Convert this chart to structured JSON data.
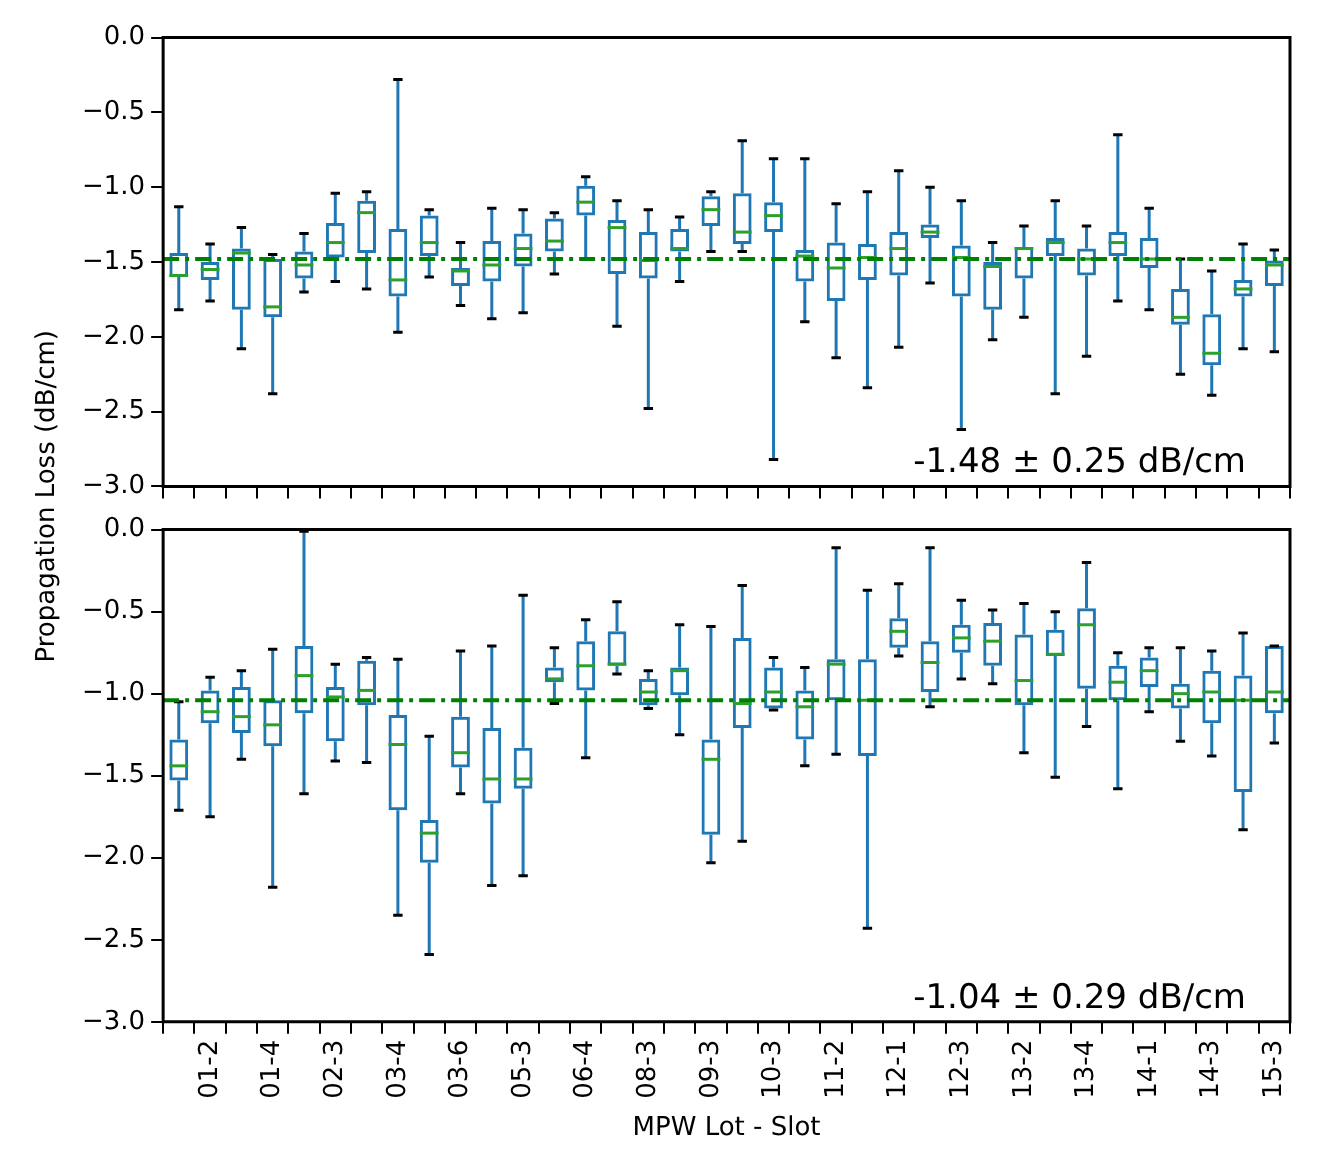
{
  "chart_data": [
    {
      "type": "box",
      "ylabel": "Propagation Loss (dB/cm)",
      "tick_labels": "y",
      "color": "#1f77b4",
      "grid": false,
      "legend": false,
      "categories": [
        null,
        null,
        null,
        null,
        null,
        null,
        null,
        null,
        null,
        null,
        null,
        null,
        null,
        null,
        null,
        null,
        null,
        null,
        null,
        null,
        null,
        null,
        null,
        null,
        null,
        null,
        null,
        null,
        null,
        null,
        null,
        null,
        null,
        null,
        null,
        null
      ],
      "boxes": [
        {
          "low": -1.82,
          "q1": -1.6,
          "median": -1.59,
          "q3": -1.44,
          "high": -1.13
        },
        {
          "low": -1.76,
          "q1": -1.62,
          "median": -1.55,
          "q3": -1.5,
          "high": -1.38
        },
        {
          "low": -2.08,
          "q1": -1.82,
          "median": -1.44,
          "q3": -1.41,
          "high": -1.27
        },
        {
          "low": -2.38,
          "q1": -1.87,
          "median": -1.8,
          "q3": -1.48,
          "high": -1.45
        },
        {
          "low": -1.7,
          "q1": -1.61,
          "median": -1.52,
          "q3": -1.43,
          "high": -1.31
        },
        {
          "low": -1.63,
          "q1": -1.47,
          "median": -1.37,
          "q3": -1.24,
          "high": -1.04
        },
        {
          "low": -1.68,
          "q1": -1.44,
          "median": -1.17,
          "q3": -1.09,
          "high": -1.03
        },
        {
          "low": -1.97,
          "q1": -1.73,
          "median": -1.62,
          "q3": -1.28,
          "high": -0.28
        },
        {
          "low": -1.6,
          "q1": -1.46,
          "median": -1.37,
          "q3": -1.19,
          "high": -1.15
        },
        {
          "low": -1.79,
          "q1": -1.66,
          "median": -1.56,
          "q3": -1.54,
          "high": -1.37
        },
        {
          "low": -1.88,
          "q1": -1.63,
          "median": -1.52,
          "q3": -1.36,
          "high": -1.14
        },
        {
          "low": -1.84,
          "q1": -1.53,
          "median": -1.41,
          "q3": -1.31,
          "high": -1.15
        },
        {
          "low": -1.58,
          "q1": -1.43,
          "median": -1.36,
          "q3": -1.21,
          "high": -1.17
        },
        {
          "low": -1.48,
          "q1": -1.19,
          "median": -1.1,
          "q3": -0.99,
          "high": -0.93
        },
        {
          "low": -1.93,
          "q1": -1.58,
          "median": -1.27,
          "q3": -1.22,
          "high": -1.09
        },
        {
          "low": -2.48,
          "q1": -1.61,
          "median": -1.49,
          "q3": -1.3,
          "high": -1.15
        },
        {
          "low": -1.63,
          "q1": -1.43,
          "median": -1.41,
          "q3": -1.28,
          "high": -1.2
        },
        {
          "low": -1.43,
          "q1": -1.26,
          "median": -1.15,
          "q3": -1.06,
          "high": -1.03
        },
        {
          "low": -1.43,
          "q1": -1.38,
          "median": -1.3,
          "q3": -1.04,
          "high": -0.69
        },
        {
          "low": -2.82,
          "q1": -1.3,
          "median": -1.19,
          "q3": -1.1,
          "high": -0.81
        },
        {
          "low": -1.9,
          "q1": -1.63,
          "median": -1.46,
          "q3": -1.42,
          "high": -0.81
        },
        {
          "low": -2.14,
          "q1": -1.76,
          "median": -1.54,
          "q3": -1.37,
          "high": -1.11
        },
        {
          "low": -2.34,
          "q1": -1.62,
          "median": -1.47,
          "q3": -1.38,
          "high": -1.03
        },
        {
          "low": -2.07,
          "q1": -1.59,
          "median": -1.41,
          "q3": -1.3,
          "high": -0.89
        },
        {
          "low": -1.64,
          "q1": -1.34,
          "median": -1.3,
          "q3": -1.25,
          "high": -1.0
        },
        {
          "low": -2.62,
          "q1": -1.73,
          "median": -1.47,
          "q3": -1.39,
          "high": -1.09
        },
        {
          "low": -2.02,
          "q1": -1.82,
          "median": -1.53,
          "q3": -1.5,
          "high": -1.37
        },
        {
          "low": -1.87,
          "q1": -1.61,
          "median": -1.41,
          "q3": -1.4,
          "high": -1.26
        },
        {
          "low": -2.38,
          "q1": -1.46,
          "median": -1.37,
          "q3": -1.34,
          "high": -1.09
        },
        {
          "low": -2.13,
          "q1": -1.59,
          "median": -1.48,
          "q3": -1.41,
          "high": -1.26
        },
        {
          "low": -1.76,
          "q1": -1.46,
          "median": -1.37,
          "q3": -1.3,
          "high": -0.65
        },
        {
          "low": -1.82,
          "q1": -1.54,
          "median": -1.48,
          "q3": -1.34,
          "high": -1.14
        },
        {
          "low": -2.25,
          "q1": -1.92,
          "median": -1.87,
          "q3": -1.68,
          "high": -1.48
        },
        {
          "low": -2.39,
          "q1": -2.19,
          "median": -2.11,
          "q3": -1.85,
          "high": -1.56
        },
        {
          "low": -2.08,
          "q1": -1.73,
          "median": -1.68,
          "q3": -1.62,
          "high": -1.38
        },
        {
          "low": -2.1,
          "q1": -1.66,
          "median": -1.52,
          "q3": -1.49,
          "high": -1.42
        }
      ],
      "ylim": [
        -3,
        0
      ],
      "yticks": [
        {
          "value": -3,
          "label": "−3.0"
        },
        {
          "value": -2.5,
          "label": "−2.5"
        },
        {
          "value": -2,
          "label": "−2.0"
        },
        {
          "value": -1.5,
          "label": "−1.5"
        },
        {
          "value": -1,
          "label": "−1.0"
        },
        {
          "value": -0.5,
          "label": "−0.5"
        },
        {
          "value": 0,
          "label": "0.0"
        }
      ],
      "ref_lines": [
        {
          "axis": "y",
          "value": -1.48,
          "color": "#008000",
          "line_style": "dashed"
        }
      ],
      "annotations": [
        "-1.48 ± 0.25 dB/cm"
      ]
    },
    {
      "type": "box",
      "xlabel": "MPW Lot - Slot",
      "color": "#1f77b4",
      "grid": false,
      "legend": false,
      "categories": [
        null,
        "01-2",
        null,
        "01-4",
        null,
        "02-3",
        null,
        "03-4",
        null,
        "03-6",
        null,
        "05-3",
        null,
        "06-4",
        null,
        "08-3",
        null,
        "09-3",
        null,
        "10-3",
        null,
        "11-2",
        null,
        "12-1",
        null,
        "12-3",
        null,
        "13-2",
        null,
        "13-4",
        null,
        "14-1",
        null,
        "14-3",
        null,
        "15-3"
      ],
      "boxes": [
        {
          "low": -1.71,
          "q1": -1.53,
          "median": -1.44,
          "q3": -1.28,
          "high": -1.05
        },
        {
          "low": -1.75,
          "q1": -1.18,
          "median": -1.11,
          "q3": -0.98,
          "high": -0.9
        },
        {
          "low": -1.4,
          "q1": -1.24,
          "median": -1.14,
          "q3": -0.96,
          "high": -0.86
        },
        {
          "low": -2.18,
          "q1": -1.32,
          "median": -1.19,
          "q3": -1.04,
          "high": -0.73
        },
        {
          "low": -1.61,
          "q1": -1.12,
          "median": -0.89,
          "q3": -0.71,
          "high": -0.01
        },
        {
          "low": -1.41,
          "q1": -1.29,
          "median": -1.02,
          "q3": -0.96,
          "high": -0.82
        },
        {
          "low": -1.42,
          "q1": -1.07,
          "median": -0.98,
          "q3": -0.8,
          "high": -0.78
        },
        {
          "low": -2.35,
          "q1": -1.71,
          "median": -1.31,
          "q3": -1.13,
          "high": -0.79
        },
        {
          "low": -2.59,
          "q1": -2.03,
          "median": -1.85,
          "q3": -1.77,
          "high": -1.26
        },
        {
          "low": -1.61,
          "q1": -1.45,
          "median": -1.36,
          "q3": -1.14,
          "high": -0.74
        },
        {
          "low": -2.17,
          "q1": -1.67,
          "median": -1.52,
          "q3": -1.21,
          "high": -0.71
        },
        {
          "low": -2.11,
          "q1": -1.58,
          "median": -1.52,
          "q3": -1.33,
          "high": -0.4
        },
        {
          "low": -1.06,
          "q1": -0.93,
          "median": -0.91,
          "q3": -0.84,
          "high": -0.72
        },
        {
          "low": -1.39,
          "q1": -0.98,
          "median": -0.83,
          "q3": -0.68,
          "high": -0.55
        },
        {
          "low": -0.88,
          "q1": -0.83,
          "median": -0.82,
          "q3": -0.62,
          "high": -0.44
        },
        {
          "low": -1.09,
          "q1": -1.07,
          "median": -0.99,
          "q3": -0.91,
          "high": -0.86
        },
        {
          "low": -1.25,
          "q1": -1.01,
          "median": -0.86,
          "q3": -0.84,
          "high": -0.58
        },
        {
          "low": -2.03,
          "q1": -1.86,
          "median": -1.4,
          "q3": -1.28,
          "high": -0.59
        },
        {
          "low": -1.9,
          "q1": -1.21,
          "median": -1.06,
          "q3": -0.66,
          "high": -0.34
        },
        {
          "low": -1.1,
          "q1": -1.09,
          "median": -0.99,
          "q3": -0.84,
          "high": -0.78
        },
        {
          "low": -1.44,
          "q1": -1.28,
          "median": -1.08,
          "q3": -0.98,
          "high": -0.84
        },
        {
          "low": -1.37,
          "q1": -1.04,
          "median": -0.82,
          "q3": -0.79,
          "high": -0.11
        },
        {
          "low": -2.43,
          "q1": -1.38,
          "median": -1.04,
          "q3": -0.79,
          "high": -0.37
        },
        {
          "low": -0.77,
          "q1": -0.72,
          "median": -0.62,
          "q3": -0.54,
          "high": -0.33
        },
        {
          "low": -1.08,
          "q1": -0.99,
          "median": -0.81,
          "q3": -0.68,
          "high": -0.11
        },
        {
          "low": -0.91,
          "q1": -0.75,
          "median": -0.66,
          "q3": -0.58,
          "high": -0.43
        },
        {
          "low": -0.94,
          "q1": -0.83,
          "median": -0.68,
          "q3": -0.57,
          "high": -0.49
        },
        {
          "low": -1.36,
          "q1": -1.07,
          "median": -0.92,
          "q3": -0.64,
          "high": -0.45
        },
        {
          "low": -1.51,
          "q1": -0.77,
          "median": -0.76,
          "q3": -0.61,
          "high": -0.5
        },
        {
          "low": -1.2,
          "q1": -0.97,
          "median": -0.58,
          "q3": -0.48,
          "high": -0.2
        },
        {
          "low": -1.58,
          "q1": -1.04,
          "median": -0.93,
          "q3": -0.83,
          "high": -0.75
        },
        {
          "low": -1.11,
          "q1": -0.96,
          "median": -0.86,
          "q3": -0.78,
          "high": -0.72
        },
        {
          "low": -1.29,
          "q1": -1.09,
          "median": -1.0,
          "q3": -0.94,
          "high": -0.72
        },
        {
          "low": -1.38,
          "q1": -1.18,
          "median": -0.99,
          "q3": -0.86,
          "high": -0.74
        },
        {
          "low": -1.83,
          "q1": -1.6,
          "median": -1.04,
          "q3": -0.89,
          "high": -0.63
        },
        {
          "low": -1.3,
          "q1": -1.12,
          "median": -0.99,
          "q3": -0.71,
          "high": -0.71
        }
      ],
      "ylim": [
        -3,
        0
      ],
      "yticks": [
        {
          "value": -3,
          "label": "−3.0"
        },
        {
          "value": -2.5,
          "label": "−2.5"
        },
        {
          "value": -2,
          "label": "−2.0"
        },
        {
          "value": -1.5,
          "label": "−1.5"
        },
        {
          "value": -1,
          "label": "−1.0"
        },
        {
          "value": -0.5,
          "label": "−0.5"
        },
        {
          "value": 0,
          "label": "0.0"
        }
      ],
      "ref_lines": [
        {
          "axis": "y",
          "value": -1.04,
          "color": "#008000",
          "line_style": "dashed"
        }
      ],
      "annotations": [
        "-1.04 ± 0.29 dB/cm"
      ]
    }
  ]
}
